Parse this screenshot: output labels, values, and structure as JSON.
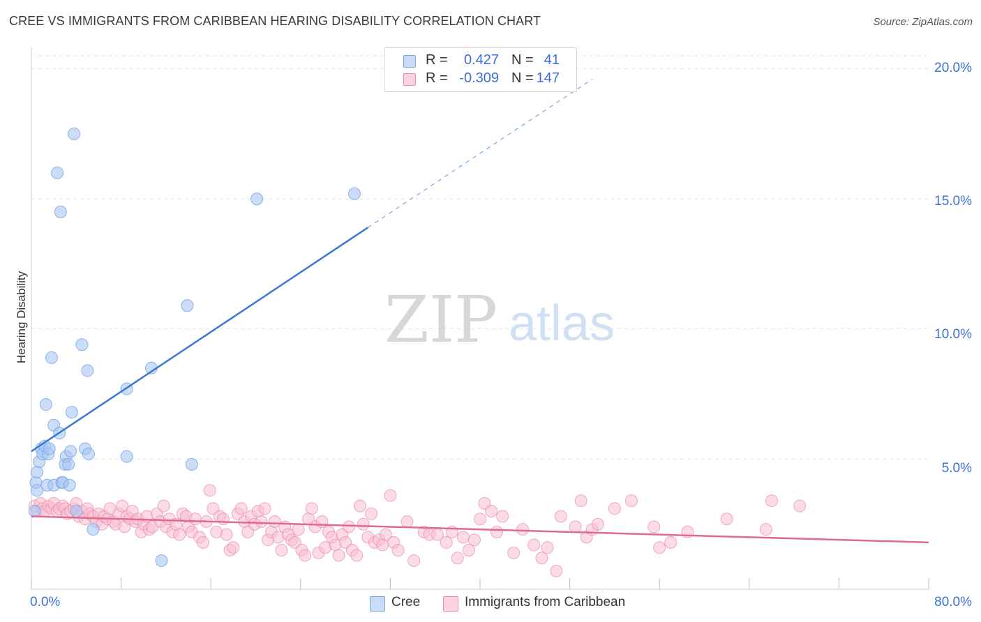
{
  "header": {
    "title": "CREE VS IMMIGRANTS FROM CARIBBEAN HEARING DISABILITY CORRELATION CHART",
    "source": "Source: ZipAtlas.com"
  },
  "watermark": {
    "zip": "ZIP",
    "atlas": "atlas"
  },
  "legend": {
    "rows": [
      {
        "r_label": "R =",
        "r_value": "0.427",
        "n_label": "N =",
        "n_value": "41",
        "color": "#9bbcef"
      },
      {
        "r_label": "R =",
        "r_value": "-0.309",
        "n_label": "N =",
        "n_value": "147",
        "color": "#f5b3c8"
      }
    ]
  },
  "bottom_legend": {
    "items": [
      {
        "label": "Cree",
        "color": "#a9c6f2"
      },
      {
        "label": "Immigrants from Caribbean",
        "color": "#f7bfd0"
      }
    ]
  },
  "axes": {
    "x_min_label": "0.0%",
    "x_max_label": "80.0%",
    "y_ticks": [
      "5.0%",
      "10.0%",
      "15.0%",
      "20.0%"
    ]
  },
  "chart_data": {
    "type": "scatter",
    "title": "CREE VS IMMIGRANTS FROM CARIBBEAN HEARING DISABILITY CORRELATION CHART",
    "xlabel": "",
    "ylabel": "Hearing Disability",
    "xlim": [
      0,
      80
    ],
    "ylim": [
      0,
      20.5
    ],
    "y_gridlines": [
      5,
      10,
      15,
      20
    ],
    "x_ticks_minor": [
      0,
      8,
      16,
      24,
      32,
      40,
      48,
      56,
      64,
      72,
      80
    ],
    "series": [
      {
        "name": "Cree",
        "color": "#7aa6e8",
        "fill": "#a9c6f2",
        "R": 0.427,
        "N": 41,
        "points": [
          [
            0.3,
            3.0
          ],
          [
            0.4,
            4.1
          ],
          [
            0.5,
            3.8
          ],
          [
            0.5,
            4.5
          ],
          [
            0.7,
            4.9
          ],
          [
            0.9,
            5.4
          ],
          [
            1.0,
            5.2
          ],
          [
            1.2,
            5.5
          ],
          [
            1.3,
            7.1
          ],
          [
            1.4,
            4.0
          ],
          [
            1.5,
            5.2
          ],
          [
            1.6,
            5.4
          ],
          [
            1.8,
            8.9
          ],
          [
            2.0,
            6.3
          ],
          [
            2.0,
            4.0
          ],
          [
            2.3,
            16.0
          ],
          [
            2.5,
            6.0
          ],
          [
            2.6,
            14.5
          ],
          [
            2.7,
            4.1
          ],
          [
            2.8,
            4.1
          ],
          [
            3.0,
            4.8
          ],
          [
            3.1,
            5.1
          ],
          [
            3.3,
            4.8
          ],
          [
            3.4,
            4.0
          ],
          [
            3.5,
            5.3
          ],
          [
            3.6,
            6.8
          ],
          [
            3.8,
            17.5
          ],
          [
            4.0,
            3.0
          ],
          [
            4.5,
            9.4
          ],
          [
            4.8,
            5.4
          ],
          [
            5.0,
            8.4
          ],
          [
            5.1,
            5.2
          ],
          [
            5.5,
            2.3
          ],
          [
            8.5,
            5.1
          ],
          [
            8.5,
            7.7
          ],
          [
            10.7,
            8.5
          ],
          [
            11.6,
            1.1
          ],
          [
            13.9,
            10.9
          ],
          [
            14.3,
            4.8
          ],
          [
            20.1,
            15.0
          ],
          [
            28.8,
            15.2
          ]
        ],
        "trend": {
          "x_start": 0,
          "y_start": 5.3,
          "x_solid_end": 30,
          "y_solid_end": 13.9,
          "x_dash_end": 50,
          "y_dash_end": 19.6
        }
      },
      {
        "name": "Immigrants from Caribbean",
        "color": "#ee88a8",
        "fill": "#f7bfd0",
        "R": -0.309,
        "N": 147,
        "points": [
          [
            0.3,
            3.2
          ],
          [
            0.5,
            3.0
          ],
          [
            0.8,
            3.3
          ],
          [
            1.0,
            3.1
          ],
          [
            1.2,
            3.0
          ],
          [
            1.5,
            3.2
          ],
          [
            1.8,
            3.1
          ],
          [
            2.0,
            3.3
          ],
          [
            2.3,
            3.0
          ],
          [
            2.5,
            3.1
          ],
          [
            2.8,
            3.2
          ],
          [
            3.0,
            3.1
          ],
          [
            3.2,
            2.9
          ],
          [
            3.5,
            3.0
          ],
          [
            3.8,
            3.1
          ],
          [
            4.0,
            3.3
          ],
          [
            4.2,
            2.8
          ],
          [
            4.5,
            3.0
          ],
          [
            4.8,
            2.7
          ],
          [
            5.0,
            3.1
          ],
          [
            5.2,
            2.9
          ],
          [
            5.5,
            2.8
          ],
          [
            5.8,
            2.6
          ],
          [
            6.0,
            2.9
          ],
          [
            6.3,
            2.5
          ],
          [
            6.5,
            2.8
          ],
          [
            6.8,
            2.7
          ],
          [
            7.0,
            3.1
          ],
          [
            7.3,
            2.6
          ],
          [
            7.5,
            2.5
          ],
          [
            7.8,
            2.9
          ],
          [
            8.1,
            3.2
          ],
          [
            8.3,
            2.4
          ],
          [
            8.5,
            2.8
          ],
          [
            8.8,
            2.7
          ],
          [
            9.0,
            3.0
          ],
          [
            9.3,
            2.6
          ],
          [
            9.5,
            2.7
          ],
          [
            9.8,
            2.2
          ],
          [
            10.0,
            2.5
          ],
          [
            10.3,
            2.8
          ],
          [
            10.5,
            2.3
          ],
          [
            10.8,
            2.4
          ],
          [
            11.2,
            2.9
          ],
          [
            11.5,
            2.6
          ],
          [
            11.8,
            3.2
          ],
          [
            12.0,
            2.4
          ],
          [
            12.3,
            2.7
          ],
          [
            12.6,
            2.2
          ],
          [
            12.9,
            2.5
          ],
          [
            13.2,
            2.1
          ],
          [
            13.5,
            2.9
          ],
          [
            13.8,
            2.8
          ],
          [
            14.0,
            2.4
          ],
          [
            14.3,
            2.2
          ],
          [
            14.6,
            2.7
          ],
          [
            15.0,
            2.0
          ],
          [
            15.3,
            1.8
          ],
          [
            15.6,
            2.6
          ],
          [
            15.9,
            3.8
          ],
          [
            16.2,
            3.1
          ],
          [
            16.5,
            2.2
          ],
          [
            16.8,
            2.8
          ],
          [
            17.1,
            2.7
          ],
          [
            17.4,
            2.1
          ],
          [
            17.7,
            1.5
          ],
          [
            18.0,
            1.6
          ],
          [
            18.4,
            2.9
          ],
          [
            18.7,
            3.1
          ],
          [
            19.0,
            2.6
          ],
          [
            19.3,
            2.2
          ],
          [
            19.6,
            2.8
          ],
          [
            19.9,
            2.5
          ],
          [
            20.2,
            3.0
          ],
          [
            20.5,
            2.6
          ],
          [
            20.8,
            3.1
          ],
          [
            21.1,
            1.9
          ],
          [
            21.4,
            2.2
          ],
          [
            21.7,
            2.6
          ],
          [
            22.0,
            2.0
          ],
          [
            22.3,
            1.5
          ],
          [
            22.6,
            2.4
          ],
          [
            22.9,
            2.1
          ],
          [
            23.2,
            1.9
          ],
          [
            23.5,
            1.8
          ],
          [
            23.8,
            2.3
          ],
          [
            24.1,
            1.5
          ],
          [
            24.4,
            1.3
          ],
          [
            24.7,
            2.7
          ],
          [
            25.0,
            3.1
          ],
          [
            25.3,
            2.4
          ],
          [
            25.6,
            1.4
          ],
          [
            25.9,
            2.6
          ],
          [
            26.2,
            1.6
          ],
          [
            26.5,
            2.2
          ],
          [
            26.8,
            2.0
          ],
          [
            27.1,
            1.7
          ],
          [
            27.4,
            1.3
          ],
          [
            27.7,
            2.1
          ],
          [
            28.0,
            1.8
          ],
          [
            28.3,
            2.4
          ],
          [
            28.6,
            1.5
          ],
          [
            29.0,
            1.3
          ],
          [
            29.3,
            3.2
          ],
          [
            29.6,
            2.5
          ],
          [
            30.0,
            2.0
          ],
          [
            30.3,
            2.9
          ],
          [
            30.6,
            1.8
          ],
          [
            31.0,
            1.9
          ],
          [
            31.3,
            1.7
          ],
          [
            31.6,
            2.1
          ],
          [
            32.0,
            3.6
          ],
          [
            32.3,
            1.8
          ],
          [
            32.7,
            1.5
          ],
          [
            33.5,
            2.6
          ],
          [
            34.1,
            1.1
          ],
          [
            35.0,
            2.2
          ],
          [
            35.5,
            2.1
          ],
          [
            36.2,
            2.1
          ],
          [
            37.0,
            1.8
          ],
          [
            37.5,
            2.2
          ],
          [
            38.0,
            1.2
          ],
          [
            38.5,
            2.0
          ],
          [
            39.0,
            1.5
          ],
          [
            39.5,
            1.9
          ],
          [
            40.0,
            2.7
          ],
          [
            40.4,
            3.3
          ],
          [
            41.0,
            3.0
          ],
          [
            41.5,
            2.2
          ],
          [
            42.0,
            2.8
          ],
          [
            43.0,
            1.4
          ],
          [
            43.8,
            2.3
          ],
          [
            44.8,
            1.7
          ],
          [
            45.5,
            1.2
          ],
          [
            46.0,
            1.6
          ],
          [
            46.8,
            0.7
          ],
          [
            47.2,
            2.8
          ],
          [
            48.5,
            2.4
          ],
          [
            49.0,
            3.4
          ],
          [
            49.5,
            2.0
          ],
          [
            50.0,
            2.3
          ],
          [
            50.5,
            2.5
          ],
          [
            52.0,
            3.1
          ],
          [
            53.5,
            3.4
          ],
          [
            55.5,
            2.4
          ],
          [
            56.0,
            1.6
          ],
          [
            57.0,
            1.8
          ],
          [
            58.5,
            2.2
          ],
          [
            62.0,
            2.7
          ],
          [
            65.5,
            2.3
          ],
          [
            66.0,
            3.4
          ],
          [
            68.5,
            3.2
          ]
        ],
        "trend": {
          "x_start": 0,
          "y_start": 2.8,
          "x_end": 80,
          "y_end": 1.8
        }
      }
    ]
  }
}
